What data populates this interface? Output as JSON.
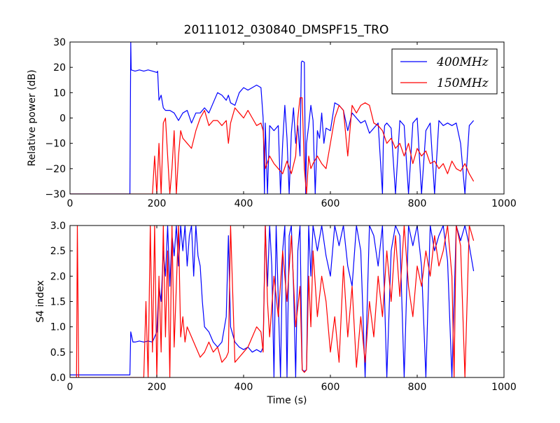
{
  "figure": {
    "title": "20111012_030840_DMSPF15_TRO"
  },
  "colors": {
    "400": "#0000ff",
    "150": "#ff0000"
  },
  "chart_data": [
    {
      "type": "line",
      "ylabel": "Relative power (dB)",
      "xlabel": "",
      "xlim": [
        0,
        1000
      ],
      "ylim": [
        -30,
        30
      ],
      "x_ticks": [
        "0",
        "200",
        "400",
        "600",
        "800",
        "1000"
      ],
      "y_ticks": [
        "30",
        "20",
        "10",
        "0",
        "−10",
        "−20",
        "−30"
      ],
      "legend": {
        "position": "top-right",
        "entries": [
          "400MHz",
          "150MHz"
        ]
      },
      "series": [
        {
          "name": "400MHz",
          "color": "#0000ff",
          "x": [
            0,
            130,
            138,
            140,
            141,
            150,
            160,
            170,
            180,
            190,
            200,
            202,
            205,
            210,
            215,
            220,
            230,
            240,
            250,
            260,
            270,
            280,
            290,
            300,
            310,
            320,
            330,
            340,
            350,
            360,
            365,
            370,
            380,
            390,
            400,
            410,
            420,
            430,
            440,
            445,
            448,
            450,
            455,
            460,
            470,
            480,
            485,
            490,
            495,
            500,
            505,
            510,
            515,
            520,
            525,
            530,
            533,
            535,
            540,
            543,
            545,
            550,
            555,
            560,
            565,
            570,
            575,
            580,
            585,
            590,
            600,
            610,
            620,
            630,
            640,
            650,
            660,
            670,
            680,
            690,
            700,
            710,
            720,
            722,
            725,
            730,
            740,
            750,
            760,
            770,
            780,
            790,
            800,
            810,
            820,
            830,
            840,
            850,
            860,
            870,
            880,
            890,
            900,
            910,
            920,
            930
          ],
          "y": [
            -30,
            -30,
            -30,
            30,
            19,
            18.5,
            19,
            18.5,
            19,
            18.5,
            18,
            18.5,
            7,
            9,
            4,
            3,
            3,
            2,
            -1,
            2,
            3,
            -2,
            2,
            2,
            4,
            2,
            6,
            10,
            9,
            7,
            9,
            6,
            5,
            10,
            12,
            11,
            12,
            13,
            12,
            0,
            -30,
            -2,
            -30,
            -3,
            -5,
            -3,
            -30,
            -10,
            5,
            -8,
            -30,
            -6,
            4,
            -10,
            -3,
            -15,
            22,
            22.5,
            22,
            -30,
            -10,
            -3,
            5,
            -1,
            -30,
            -5,
            -8,
            2,
            -10,
            -4,
            -5,
            6,
            5,
            3,
            -5,
            2,
            0,
            -2,
            -1,
            -6,
            -4,
            -2,
            -30,
            -10,
            -3,
            -2,
            -4,
            -30,
            -1,
            -3,
            -30,
            -2,
            0,
            -30,
            -5,
            -2,
            -30,
            -1,
            -3,
            -2,
            -3,
            -2,
            -10,
            -30,
            -3,
            -1
          ],
          "values_note": ""
        },
        {
          "name": "150MHz",
          "color": "#ff0000",
          "x": [
            0,
            150,
            190,
            195,
            200,
            205,
            210,
            215,
            220,
            225,
            230,
            235,
            240,
            245,
            250,
            255,
            260,
            270,
            280,
            290,
            300,
            310,
            320,
            330,
            340,
            350,
            360,
            365,
            370,
            380,
            390,
            400,
            410,
            420,
            430,
            440,
            445,
            450,
            460,
            470,
            480,
            490,
            500,
            510,
            520,
            525,
            530,
            535,
            540,
            545,
            550,
            555,
            560,
            570,
            580,
            590,
            600,
            610,
            620,
            630,
            640,
            650,
            660,
            670,
            680,
            690,
            700,
            710,
            720,
            730,
            740,
            750,
            760,
            770,
            780,
            790,
            800,
            810,
            820,
            830,
            840,
            850,
            860,
            870,
            880,
            890,
            900,
            910,
            920,
            930
          ],
          "y": [
            -30,
            -30,
            -30,
            -15,
            -30,
            -10,
            -30,
            -2,
            0,
            -15,
            -30,
            -20,
            -5,
            -30,
            -15,
            -5,
            -8,
            -10,
            -12,
            -5,
            0,
            3,
            -3,
            -1,
            -1,
            -3,
            -1,
            -10,
            -2,
            4,
            2,
            0,
            3,
            0,
            -3,
            -2,
            -5,
            -20,
            -15,
            -18,
            -20,
            -22,
            -17,
            -22,
            -15,
            0,
            8,
            8,
            -20,
            -30,
            -15,
            -20,
            -18,
            -15,
            -18,
            -20,
            -10,
            0,
            5,
            3,
            -15,
            5,
            2,
            5,
            6,
            5,
            -2,
            -3,
            -5,
            -10,
            -8,
            -12,
            -10,
            -15,
            -10,
            -18,
            -12,
            -15,
            -13,
            -18,
            -17,
            -20,
            -18,
            -22,
            -17,
            -20,
            -21,
            -18,
            -22,
            -25
          ],
          "values_note": ""
        }
      ]
    },
    {
      "type": "line",
      "ylabel": "S4 index",
      "xlabel": "Time (s)",
      "xlim": [
        0,
        1000
      ],
      "ylim": [
        0,
        3
      ],
      "x_ticks": [
        "0",
        "200",
        "400",
        "600",
        "800",
        "1000"
      ],
      "y_ticks": [
        "3.0",
        "2.5",
        "2.0",
        "1.5",
        "1.0",
        "0.5",
        "0.0"
      ],
      "series": [
        {
          "name": "400MHz",
          "color": "#0000ff",
          "x": [
            0,
            130,
            138,
            140,
            145,
            150,
            160,
            170,
            180,
            190,
            200,
            205,
            210,
            215,
            220,
            225,
            230,
            235,
            240,
            245,
            250,
            255,
            260,
            265,
            270,
            275,
            280,
            285,
            290,
            295,
            300,
            305,
            310,
            320,
            330,
            340,
            350,
            360,
            365,
            370,
            380,
            390,
            400,
            410,
            420,
            430,
            440,
            445,
            450,
            455,
            460,
            465,
            470,
            475,
            480,
            485,
            490,
            495,
            500,
            505,
            510,
            515,
            520,
            525,
            530,
            535,
            540,
            545,
            550,
            555,
            560,
            570,
            580,
            590,
            600,
            610,
            620,
            630,
            640,
            650,
            660,
            670,
            680,
            690,
            700,
            710,
            720,
            730,
            740,
            750,
            760,
            770,
            780,
            790,
            800,
            810,
            820,
            830,
            840,
            850,
            860,
            870,
            880,
            890,
            900,
            910,
            920,
            930
          ],
          "y": [
            0.05,
            0.05,
            0.05,
            0.9,
            0.7,
            0.7,
            0.72,
            0.7,
            0.72,
            0.7,
            0.9,
            1.8,
            1.5,
            2.5,
            2.0,
            3.0,
            1.8,
            2.8,
            2.4,
            3.0,
            2.2,
            3.0,
            2.5,
            3.0,
            2.2,
            2.8,
            3.0,
            2.0,
            3.0,
            2.4,
            2.2,
            1.5,
            1.0,
            0.9,
            0.7,
            0.6,
            0.7,
            1.2,
            2.8,
            1.0,
            0.7,
            0.6,
            0.55,
            0.6,
            0.5,
            0.55,
            0.5,
            0.6,
            3.0,
            1.8,
            3.0,
            2.2,
            0.0,
            3.0,
            1.5,
            0.0,
            2.5,
            3.0,
            0.0,
            2.8,
            3.0,
            1.8,
            0.0,
            2.5,
            3.0,
            0.15,
            0.12,
            0.15,
            3.0,
            2.0,
            3.0,
            2.5,
            3.0,
            2.4,
            2.0,
            3.0,
            2.6,
            3.0,
            2.2,
            1.8,
            3.0,
            2.5,
            0.0,
            3.0,
            2.8,
            2.2,
            3.0,
            0.0,
            2.5,
            3.0,
            2.8,
            0.0,
            3.0,
            2.6,
            3.0,
            2.2,
            0.0,
            3.0,
            2.5,
            2.8,
            3.0,
            2.3,
            0.0,
            3.0,
            2.7,
            3.0,
            2.6,
            2.1
          ],
          "values_note": ""
        },
        {
          "name": "150MHz",
          "color": "#ff0000",
          "x": [
            0,
            10,
            15,
            17,
            20,
            25,
            30,
            40,
            60,
            80,
            100,
            120,
            140,
            150,
            160,
            170,
            175,
            180,
            185,
            190,
            195,
            200,
            205,
            210,
            215,
            220,
            225,
            230,
            235,
            240,
            245,
            250,
            255,
            260,
            265,
            270,
            280,
            290,
            300,
            310,
            320,
            330,
            340,
            350,
            360,
            365,
            370,
            380,
            390,
            400,
            410,
            420,
            430,
            440,
            445,
            450,
            455,
            460,
            470,
            480,
            490,
            500,
            510,
            520,
            530,
            535,
            540,
            545,
            550,
            555,
            560,
            570,
            580,
            590,
            600,
            610,
            620,
            630,
            640,
            650,
            660,
            670,
            680,
            690,
            700,
            710,
            720,
            730,
            740,
            750,
            760,
            770,
            780,
            790,
            800,
            810,
            820,
            830,
            840,
            850,
            860,
            870,
            880,
            885,
            890,
            900,
            910,
            920,
            930
          ],
          "y": [
            0.0,
            0.0,
            0.0,
            3.0,
            0.0,
            0.0,
            0.0,
            0.0,
            0.0,
            0.0,
            0.0,
            0.0,
            0.0,
            0.0,
            0.0,
            0.0,
            1.5,
            0.0,
            3.0,
            0.5,
            3.0,
            0.0,
            2.0,
            0.5,
            3.0,
            0.8,
            2.5,
            0.0,
            3.0,
            0.6,
            1.8,
            3.0,
            0.8,
            1.2,
            0.7,
            1.0,
            0.8,
            0.6,
            0.4,
            0.5,
            0.7,
            0.5,
            0.6,
            0.3,
            0.4,
            0.5,
            3.0,
            0.3,
            0.4,
            0.5,
            0.6,
            0.8,
            1.0,
            0.9,
            0.5,
            3.0,
            1.5,
            0.8,
            2.0,
            1.2,
            2.5,
            1.5,
            2.8,
            1.0,
            1.8,
            0.15,
            0.1,
            0.15,
            2.0,
            1.0,
            2.5,
            1.2,
            2.0,
            1.5,
            0.5,
            1.2,
            0.3,
            2.2,
            0.8,
            1.8,
            0.2,
            1.2,
            0.3,
            1.5,
            0.8,
            2.0,
            1.2,
            2.5,
            1.5,
            2.8,
            1.6,
            3.0,
            1.8,
            1.2,
            2.2,
            1.8,
            2.5,
            2.0,
            2.8,
            2.2,
            2.5,
            3.0,
            2.0,
            0.0,
            3.0,
            2.6,
            0.0,
            3.0,
            2.7
          ],
          "values_note": ""
        }
      ]
    }
  ]
}
